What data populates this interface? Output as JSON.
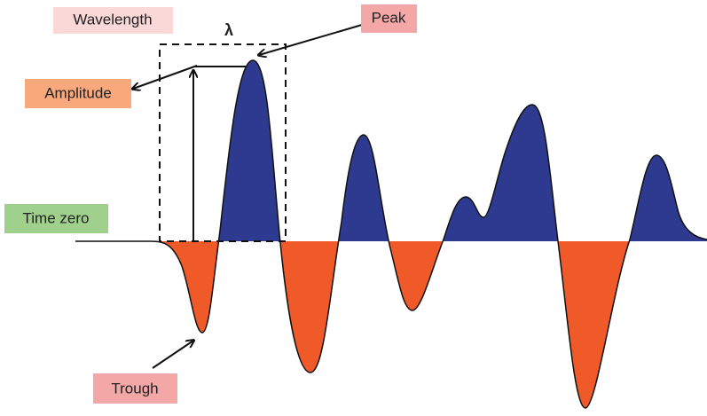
{
  "labels": {
    "wavelength": "Wavelength",
    "lambda": "λ",
    "peak": "Peak",
    "amplitude": "Amplitude",
    "time_zero": "Time zero",
    "trough": "Trough"
  }
}
